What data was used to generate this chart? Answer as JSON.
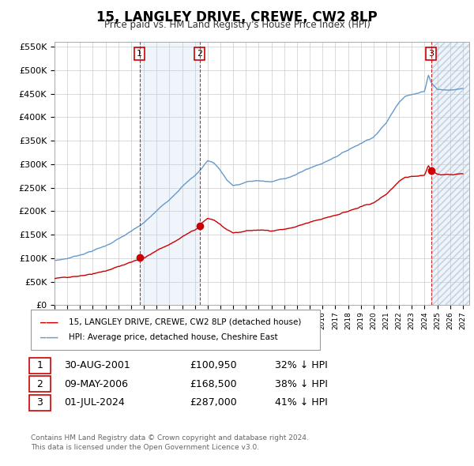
{
  "title": "15, LANGLEY DRIVE, CREWE, CW2 8LP",
  "subtitle": "Price paid vs. HM Land Registry's House Price Index (HPI)",
  "ylim": [
    0,
    560000
  ],
  "yticks": [
    0,
    50000,
    100000,
    150000,
    200000,
    250000,
    300000,
    350000,
    400000,
    450000,
    500000,
    550000
  ],
  "ytick_labels": [
    "£0",
    "£50K",
    "£100K",
    "£150K",
    "£200K",
    "£250K",
    "£300K",
    "£350K",
    "£400K",
    "£450K",
    "£500K",
    "£550K"
  ],
  "xlim_start": 1995.0,
  "xlim_end": 2027.5,
  "sale_dates": [
    2001.66,
    2006.36,
    2024.5
  ],
  "sale_prices": [
    100950,
    168500,
    287000
  ],
  "sale_labels": [
    "1",
    "2",
    "3"
  ],
  "sale_discounts": [
    0.32,
    0.38,
    0.41
  ],
  "legend_label_red": "15, LANGLEY DRIVE, CREWE, CW2 8LP (detached house)",
  "legend_label_blue": "HPI: Average price, detached house, Cheshire East",
  "table_rows": [
    [
      "1",
      "30-AUG-2001",
      "£100,950",
      "32% ↓ HPI"
    ],
    [
      "2",
      "09-MAY-2006",
      "£168,500",
      "38% ↓ HPI"
    ],
    [
      "3",
      "01-JUL-2024",
      "£287,000",
      "41% ↓ HPI"
    ]
  ],
  "footer": "Contains HM Land Registry data © Crown copyright and database right 2024.\nThis data is licensed under the Open Government Licence v3.0.",
  "hpi_color": "#6699cc",
  "price_color": "#cc0000",
  "vline_color": "#cc0000",
  "shade_color": "#ddeeff"
}
